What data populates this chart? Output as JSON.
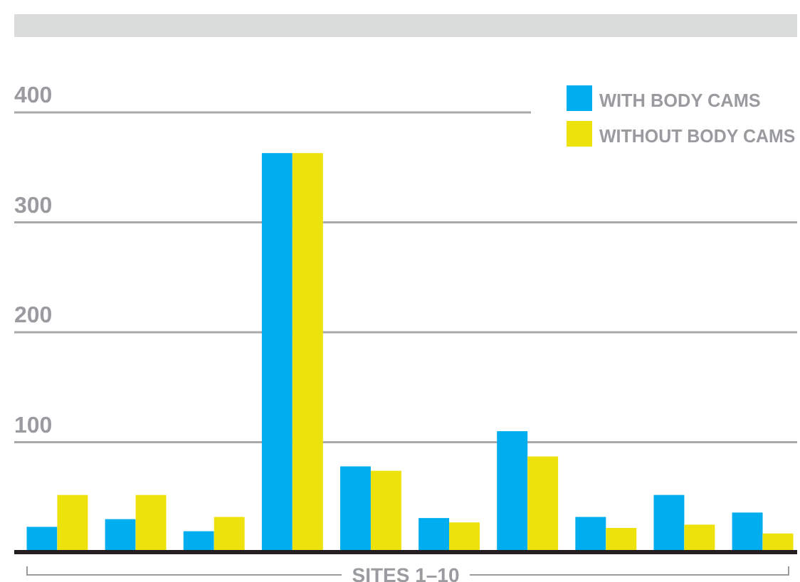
{
  "chart_data": {
    "type": "bar",
    "xlabel": "SITES 1–10",
    "categories": [
      null,
      null,
      null,
      null,
      null,
      null,
      null,
      null,
      null,
      null
    ],
    "series": [
      {
        "name": "WITH BODY CAMS",
        "color": "#00aeef",
        "values": [
          23,
          30,
          19,
          363,
          78,
          31,
          110,
          32,
          52,
          36
        ]
      },
      {
        "name": "WITHOUT BODY CAMS",
        "color": "#ede20c",
        "values": [
          52,
          52,
          32,
          363,
          74,
          27,
          87,
          22,
          25,
          17
        ]
      }
    ],
    "ylim": [
      0,
      400
    ],
    "yticks": [
      100,
      200,
      300,
      400
    ],
    "grid": "y",
    "legend": "top right"
  }
}
